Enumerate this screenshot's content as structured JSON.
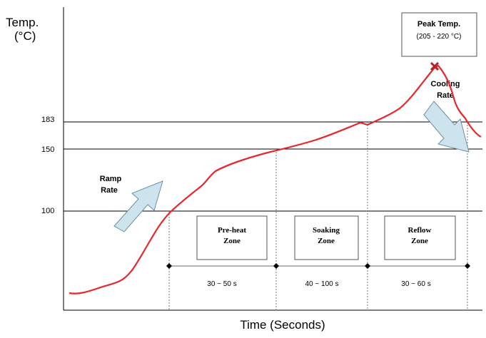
{
  "y_axis_label_line1": "Temp.",
  "y_axis_label_line2": "(°C)",
  "x_axis_label": "Time (Seconds)",
  "ticks": [
    "183",
    "150",
    "100"
  ],
  "ramp_rate": {
    "line1": "Ramp",
    "line2": "Rate"
  },
  "cooling_rate": {
    "line1": "Cooling",
    "line2": "Rate"
  },
  "peak": {
    "line1": "Peak Temp.",
    "line2": "(205 - 220 °C)"
  },
  "zones": [
    {
      "line1": "Pre-heat",
      "line2": "Zone",
      "duration": "30 ~ 50 s"
    },
    {
      "line1": "Soaking",
      "line2": "Zone",
      "duration": "40 ~ 100 s"
    },
    {
      "line1": "Reflow",
      "line2": "Zone",
      "duration": "30 ~ 60 s"
    }
  ],
  "colors": {
    "curve": "#e8262b",
    "peak_marker": "#b22222",
    "arrow_fill": "#cde4ee",
    "arrow_stroke": "#6b8fa3",
    "grid": "#000000"
  }
}
